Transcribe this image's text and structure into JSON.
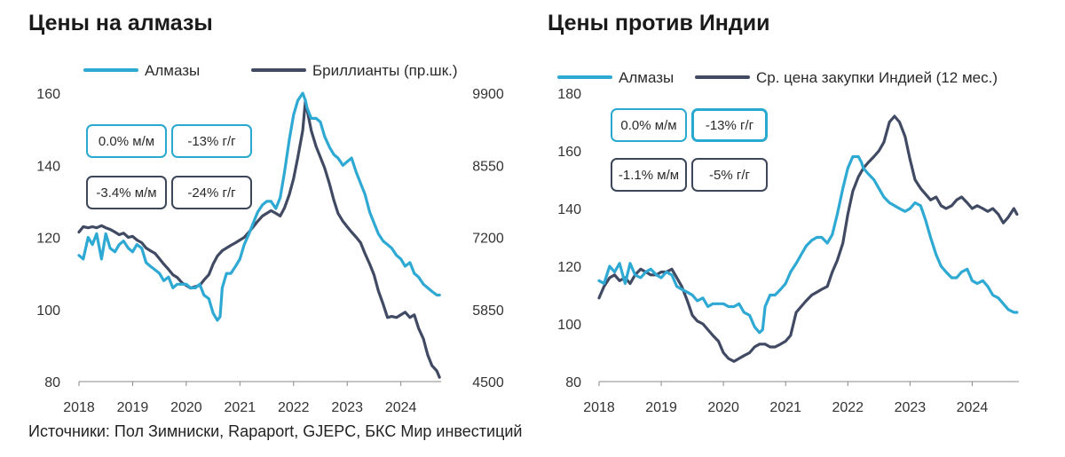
{
  "source": "Источники:  Пол Зимниски, Rapaport, GJEPC, БКС Мир инвестиций",
  "colors": {
    "diamonds": "#2ea9d3",
    "second": "#414a63"
  },
  "chart_data": [
    {
      "type": "line",
      "title": "Цены на алмазы",
      "xlabel": "",
      "ylabel": "",
      "x_ticks": [
        "2018",
        "2019",
        "2020",
        "2021",
        "2022",
        "2023",
        "2024"
      ],
      "xlim": [
        2018.0,
        2024.75
      ],
      "ylim": [
        80,
        160
      ],
      "y_ticks": [
        "80",
        "100",
        "120",
        "140",
        "160"
      ],
      "y2lim": [
        4500,
        9900
      ],
      "y2_ticks": [
        "4500",
        "5850",
        "7200",
        "8550",
        "9900"
      ],
      "legend": "top",
      "badges": [
        {
          "text": "0.0% м/м",
          "style": "cyan"
        },
        {
          "text": "-13% г/г",
          "style": "cyan"
        },
        {
          "text": "-3.4% м/м",
          "style": "dark"
        },
        {
          "text": "-24% г/г",
          "style": "dark"
        }
      ],
      "series": [
        {
          "name": "Алмазы",
          "axis": "left",
          "color": "#2ea9d3",
          "x": [
            2018.0,
            2018.08,
            2018.17,
            2018.25,
            2018.33,
            2018.42,
            2018.5,
            2018.58,
            2018.67,
            2018.75,
            2018.83,
            2018.92,
            2019.0,
            2019.08,
            2019.17,
            2019.25,
            2019.33,
            2019.42,
            2019.5,
            2019.58,
            2019.67,
            2019.75,
            2019.83,
            2019.92,
            2020.0,
            2020.08,
            2020.17,
            2020.25,
            2020.33,
            2020.42,
            2020.5,
            2020.58,
            2020.63,
            2020.67,
            2020.75,
            2020.83,
            2020.92,
            2021.0,
            2021.08,
            2021.17,
            2021.25,
            2021.33,
            2021.42,
            2021.5,
            2021.58,
            2021.67,
            2021.75,
            2021.83,
            2021.92,
            2022.0,
            2022.08,
            2022.17,
            2022.22,
            2022.25,
            2022.33,
            2022.42,
            2022.5,
            2022.58,
            2022.67,
            2022.75,
            2022.83,
            2022.92,
            2023.0,
            2023.08,
            2023.17,
            2023.25,
            2023.33,
            2023.42,
            2023.5,
            2023.58,
            2023.67,
            2023.75,
            2023.83,
            2023.92,
            2024.0,
            2024.08,
            2024.17,
            2024.25,
            2024.33,
            2024.42,
            2024.5,
            2024.58,
            2024.67,
            2024.72
          ],
          "values": [
            115,
            114,
            120,
            118,
            121,
            114,
            121,
            117,
            116,
            118,
            119,
            117,
            116,
            118,
            117,
            113,
            112,
            111,
            110,
            108,
            109,
            106,
            107,
            107,
            107,
            106,
            106,
            107,
            104,
            103,
            99,
            97,
            98,
            106,
            110,
            110,
            112,
            114,
            118,
            121,
            124,
            127,
            129,
            130,
            130,
            128,
            131,
            138,
            147,
            154,
            158,
            160,
            158,
            156,
            153,
            153,
            152,
            148,
            145,
            143,
            142,
            140,
            141,
            142,
            138,
            135,
            132,
            127,
            124,
            121,
            119,
            118,
            117,
            115,
            114,
            112,
            113,
            110,
            109,
            107,
            106,
            105,
            104,
            104
          ]
        },
        {
          "name": "Бриллианты (пр.шк.)",
          "axis": "right",
          "color": "#414a63",
          "x": [
            2018.0,
            2018.08,
            2018.17,
            2018.25,
            2018.33,
            2018.42,
            2018.5,
            2018.58,
            2018.67,
            2018.75,
            2018.83,
            2018.92,
            2019.0,
            2019.08,
            2019.17,
            2019.25,
            2019.33,
            2019.42,
            2019.5,
            2019.58,
            2019.67,
            2019.75,
            2019.83,
            2019.92,
            2020.0,
            2020.08,
            2020.17,
            2020.25,
            2020.33,
            2020.42,
            2020.5,
            2020.58,
            2020.67,
            2020.75,
            2020.83,
            2020.92,
            2021.0,
            2021.08,
            2021.17,
            2021.25,
            2021.33,
            2021.42,
            2021.5,
            2021.58,
            2021.67,
            2021.75,
            2021.83,
            2021.92,
            2022.0,
            2022.08,
            2022.17,
            2022.22,
            2022.25,
            2022.33,
            2022.42,
            2022.5,
            2022.58,
            2022.67,
            2022.75,
            2022.83,
            2022.92,
            2023.0,
            2023.08,
            2023.17,
            2023.25,
            2023.33,
            2023.42,
            2023.5,
            2023.58,
            2023.67,
            2023.75,
            2023.83,
            2023.92,
            2024.0,
            2024.08,
            2024.17,
            2024.25,
            2024.33,
            2024.42,
            2024.5,
            2024.58,
            2024.67,
            2024.72
          ],
          "values": [
            7300,
            7400,
            7380,
            7400,
            7380,
            7420,
            7380,
            7350,
            7300,
            7250,
            7280,
            7200,
            7220,
            7150,
            7100,
            7000,
            6950,
            6900,
            6800,
            6700,
            6600,
            6500,
            6450,
            6350,
            6300,
            6250,
            6280,
            6300,
            6400,
            6500,
            6700,
            6850,
            6950,
            7000,
            7050,
            7100,
            7150,
            7200,
            7300,
            7400,
            7500,
            7600,
            7650,
            7700,
            7650,
            7600,
            7750,
            8000,
            8300,
            8700,
            9200,
            9750,
            9600,
            9200,
            8900,
            8700,
            8500,
            8200,
            7900,
            7650,
            7500,
            7400,
            7300,
            7200,
            7100,
            6900,
            6700,
            6500,
            6200,
            5950,
            5700,
            5720,
            5700,
            5750,
            5800,
            5700,
            5750,
            5500,
            5300,
            5000,
            4800,
            4700,
            4580
          ]
        }
      ]
    },
    {
      "type": "line",
      "title": "Цены против Индии",
      "xlabel": "",
      "ylabel": "",
      "x_ticks": [
        "2018",
        "2019",
        "2020",
        "2021",
        "2022",
        "2023",
        "2024"
      ],
      "xlim": [
        2018.0,
        2024.75
      ],
      "ylim": [
        80,
        180
      ],
      "y_ticks": [
        "80",
        "100",
        "120",
        "140",
        "160",
        "180"
      ],
      "legend": "top",
      "badges": [
        {
          "text": "0.0% м/м",
          "style": "cyan"
        },
        {
          "text": "-13% г/г",
          "style": "cyan-thick"
        },
        {
          "text": "-1.1% м/м",
          "style": "dark"
        },
        {
          "text": "-5% г/г",
          "style": "dark"
        }
      ],
      "series": [
        {
          "name": "Алмазы",
          "axis": "left",
          "color": "#2ea9d3",
          "x": [
            2018.0,
            2018.08,
            2018.17,
            2018.25,
            2018.33,
            2018.42,
            2018.5,
            2018.58,
            2018.67,
            2018.75,
            2018.83,
            2018.92,
            2019.0,
            2019.08,
            2019.17,
            2019.25,
            2019.33,
            2019.42,
            2019.5,
            2019.58,
            2019.67,
            2019.75,
            2019.83,
            2019.92,
            2020.0,
            2020.08,
            2020.17,
            2020.25,
            2020.33,
            2020.42,
            2020.5,
            2020.58,
            2020.63,
            2020.67,
            2020.75,
            2020.83,
            2020.92,
            2021.0,
            2021.08,
            2021.17,
            2021.25,
            2021.33,
            2021.42,
            2021.5,
            2021.58,
            2021.67,
            2021.75,
            2021.83,
            2021.92,
            2022.0,
            2022.08,
            2022.17,
            2022.22,
            2022.25,
            2022.33,
            2022.42,
            2022.5,
            2022.58,
            2022.67,
            2022.75,
            2022.83,
            2022.92,
            2023.0,
            2023.08,
            2023.17,
            2023.25,
            2023.33,
            2023.42,
            2023.5,
            2023.58,
            2023.67,
            2023.75,
            2023.83,
            2023.92,
            2024.0,
            2024.08,
            2024.17,
            2024.25,
            2024.33,
            2024.42,
            2024.5,
            2024.58,
            2024.67,
            2024.72
          ],
          "values": [
            115,
            114,
            120,
            118,
            121,
            114,
            121,
            117,
            116,
            118,
            119,
            117,
            116,
            118,
            117,
            113,
            112,
            111,
            110,
            108,
            109,
            106,
            107,
            107,
            107,
            106,
            106,
            107,
            104,
            103,
            99,
            97,
            98,
            106,
            110,
            110,
            112,
            114,
            118,
            121,
            124,
            127,
            129,
            130,
            130,
            128,
            131,
            138,
            147,
            154,
            158,
            158,
            156,
            154,
            152,
            150,
            147,
            144,
            142,
            141,
            140,
            139,
            140,
            142,
            141,
            136,
            130,
            124,
            120,
            118,
            116,
            116,
            118,
            119,
            115,
            114,
            115,
            113,
            110,
            109,
            107,
            105,
            104,
            104
          ]
        },
        {
          "name": "Ср. цена закупки Индией (12 мес.)",
          "axis": "left",
          "color": "#414a63",
          "x": [
            2018.0,
            2018.08,
            2018.17,
            2018.25,
            2018.33,
            2018.42,
            2018.5,
            2018.58,
            2018.67,
            2018.75,
            2018.83,
            2018.92,
            2019.0,
            2019.08,
            2019.17,
            2019.25,
            2019.33,
            2019.42,
            2019.5,
            2019.58,
            2019.67,
            2019.75,
            2019.83,
            2019.92,
            2020.0,
            2020.08,
            2020.17,
            2020.25,
            2020.33,
            2020.42,
            2020.5,
            2020.58,
            2020.67,
            2020.75,
            2020.83,
            2020.92,
            2021.0,
            2021.08,
            2021.17,
            2021.25,
            2021.33,
            2021.42,
            2021.5,
            2021.58,
            2021.67,
            2021.75,
            2021.83,
            2021.92,
            2022.0,
            2022.08,
            2022.17,
            2022.25,
            2022.33,
            2022.42,
            2022.5,
            2022.58,
            2022.67,
            2022.75,
            2022.83,
            2022.92,
            2023.0,
            2023.08,
            2023.17,
            2023.25,
            2023.33,
            2023.42,
            2023.5,
            2023.58,
            2023.67,
            2023.75,
            2023.83,
            2023.92,
            2024.0,
            2024.08,
            2024.17,
            2024.25,
            2024.33,
            2024.42,
            2024.5,
            2024.58,
            2024.67,
            2024.72
          ],
          "values": [
            109,
            113,
            116,
            117,
            115,
            116,
            114,
            117,
            119,
            118,
            117,
            117,
            118,
            118,
            119,
            116,
            113,
            108,
            103,
            101,
            100,
            98,
            96,
            94,
            90,
            88,
            87,
            88,
            89,
            90,
            92,
            93,
            93,
            92,
            92,
            93,
            94,
            96,
            104,
            106,
            108,
            110,
            111,
            112,
            113,
            118,
            122,
            128,
            138,
            146,
            151,
            154,
            156,
            158,
            160,
            163,
            170,
            172,
            170,
            165,
            157,
            150,
            147,
            145,
            143,
            144,
            141,
            140,
            141,
            143,
            144,
            142,
            140,
            141,
            140,
            139,
            140,
            138,
            135,
            137,
            140,
            138
          ]
        }
      ]
    }
  ]
}
